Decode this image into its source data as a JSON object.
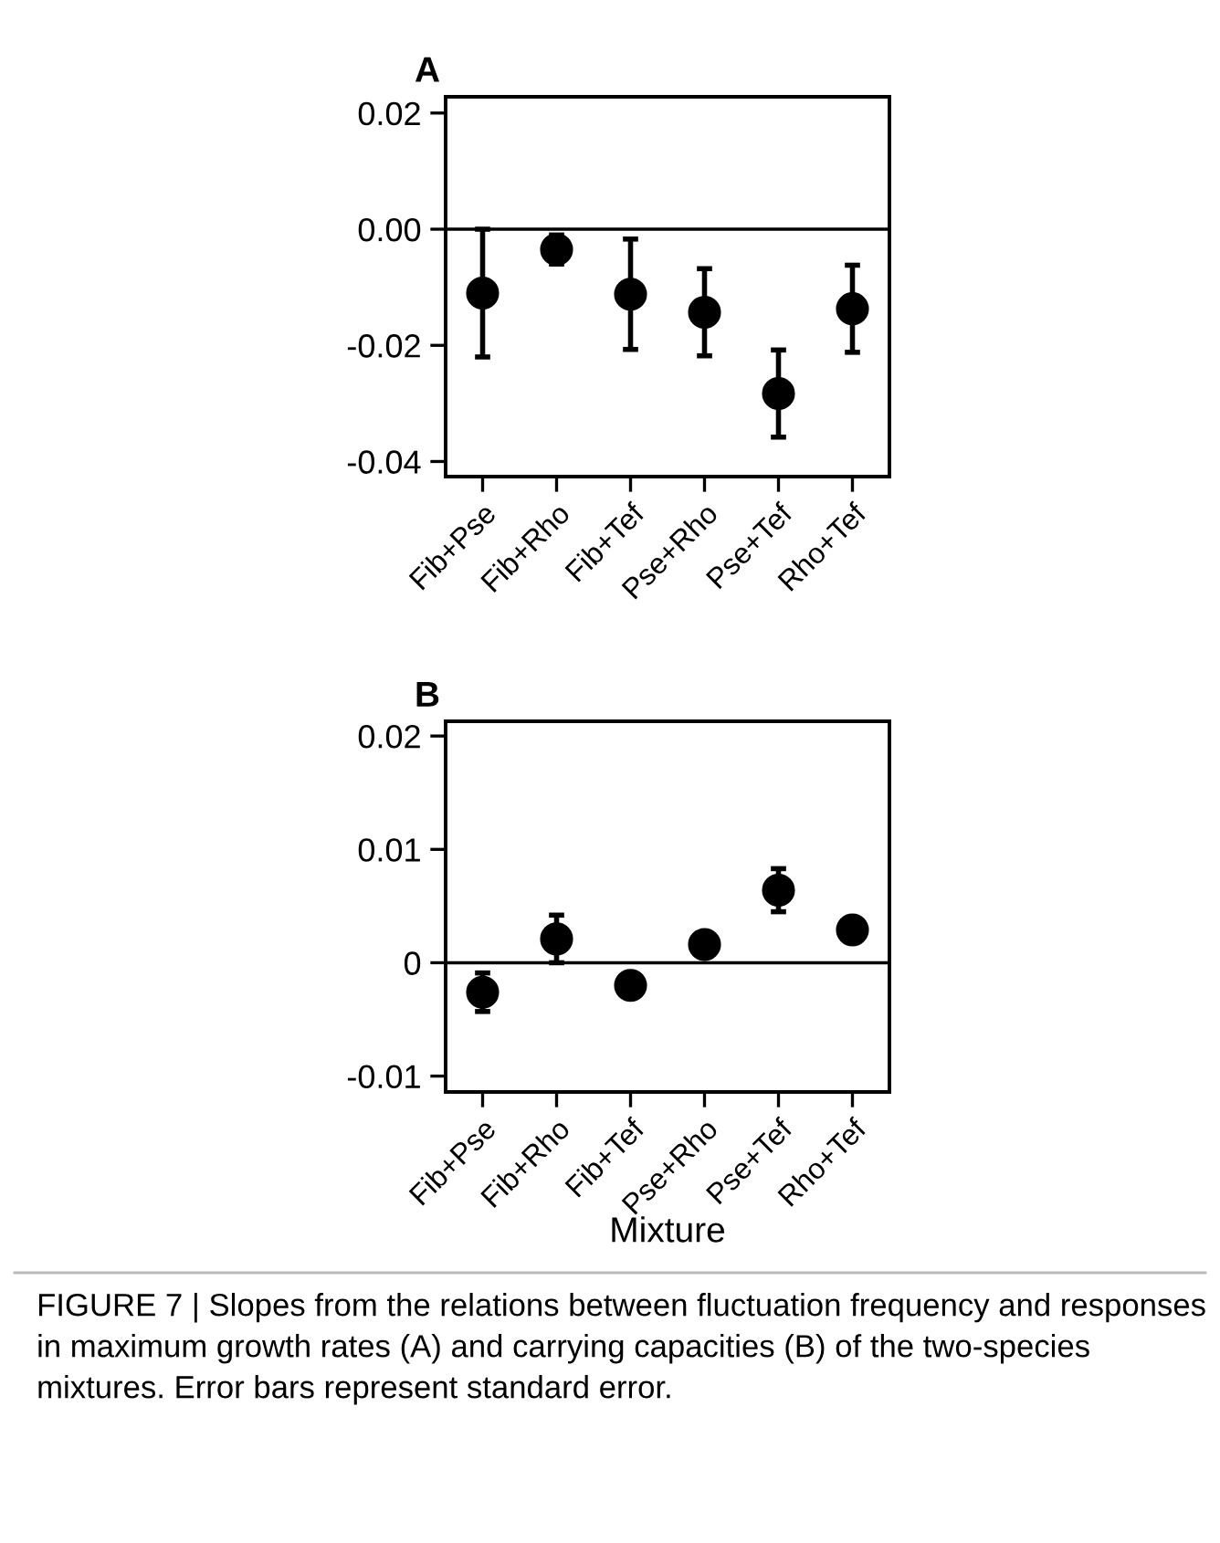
{
  "chart_data": [
    {
      "type": "scatter",
      "title": "A",
      "categories": [
        "Fib+Pse",
        "Fib+Rho",
        "Fib+Tef",
        "Pse+Rho",
        "Pse+Tef",
        "Rho+Tef"
      ],
      "values": [
        -0.011,
        -0.0035,
        -0.0112,
        -0.0143,
        -0.0283,
        -0.0137
      ],
      "errors": [
        0.011,
        0.0025,
        0.0095,
        0.0075,
        0.0075,
        0.0075
      ],
      "color": "#000000",
      "marker": "circle",
      "ylim": [
        -0.0426,
        0.0228
      ],
      "yticks": [
        {
          "value": -0.04,
          "label": "-0.04"
        },
        {
          "value": -0.02,
          "label": "-0.02"
        },
        {
          "value": 0,
          "label": "0.00"
        },
        {
          "value": 0.02,
          "label": "0.02"
        }
      ],
      "ref_lines": [
        {
          "axis": "y",
          "value": 0,
          "color": "#000000",
          "line_style": "solid"
        }
      ],
      "grid": false,
      "legend": false
    },
    {
      "type": "scatter",
      "title": "B",
      "xlabel": "Mixture",
      "categories": [
        "Fib+Pse",
        "Fib+Rho",
        "Fib+Tef",
        "Pse+Rho",
        "Pse+Tef",
        "Rho+Tef"
      ],
      "values": [
        -0.0026,
        0.0021,
        -0.002,
        0.0016,
        0.0064,
        0.0029
      ],
      "errors": [
        0.0017,
        0.0021,
        0.0009,
        0.0004,
        0.0019,
        0.0008
      ],
      "color": "#000000",
      "marker": "circle",
      "ylim": [
        -0.0114,
        0.0213
      ],
      "yticks": [
        {
          "value": -0.01,
          "label": "-0.01"
        },
        0,
        0.01,
        0.02
      ],
      "ref_lines": [
        {
          "axis": "y",
          "value": 0,
          "color": "#000000",
          "line_style": "solid"
        }
      ],
      "annotations": [
        "FIGURE 7 | Slopes from the relations between fluctuation frequency and responses in maximum growth rates (A) and carrying capacities (B) of the two-species mixtures. Error bars represent standard error."
      ],
      "grid": false,
      "legend": false
    }
  ]
}
